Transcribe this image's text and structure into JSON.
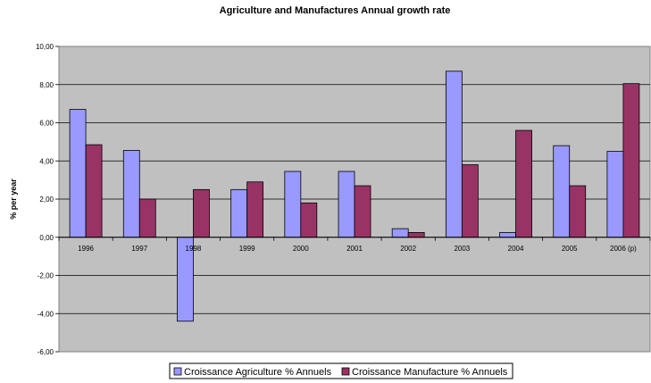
{
  "chart_data": {
    "type": "bar",
    "title": "Agriculture and Manufactures Annual growth rate",
    "ylabel": "% per year",
    "xlabel": "",
    "categories": [
      "1996",
      "1997",
      "1998",
      "1999",
      "2000",
      "2001",
      "2002",
      "2003",
      "2004",
      "2005",
      "2006 (p)"
    ],
    "series": [
      {
        "name": "Croissance Agriculture % Annuels",
        "color": "#9999ff",
        "values": [
          6.7,
          4.55,
          -4.4,
          2.5,
          3.45,
          3.45,
          0.45,
          8.7,
          0.25,
          4.8,
          4.5
        ]
      },
      {
        "name": "Croissance Manufacture % Annuels",
        "color": "#993366",
        "values": [
          4.85,
          2.0,
          2.5,
          2.9,
          1.8,
          2.7,
          0.25,
          3.8,
          5.6,
          2.7,
          8.05
        ]
      }
    ],
    "ylim": [
      -6,
      10
    ],
    "yticks": [
      "-6,00",
      "-4,00",
      "-2,00",
      "0,00",
      "2,00",
      "4,00",
      "6,00",
      "8,00",
      "10,00"
    ],
    "ytick_values": [
      -6,
      -4,
      -2,
      0,
      2,
      4,
      6,
      8,
      10
    ],
    "grid": true,
    "plot_background": "#c0c0c0",
    "legend_position": "bottom"
  }
}
